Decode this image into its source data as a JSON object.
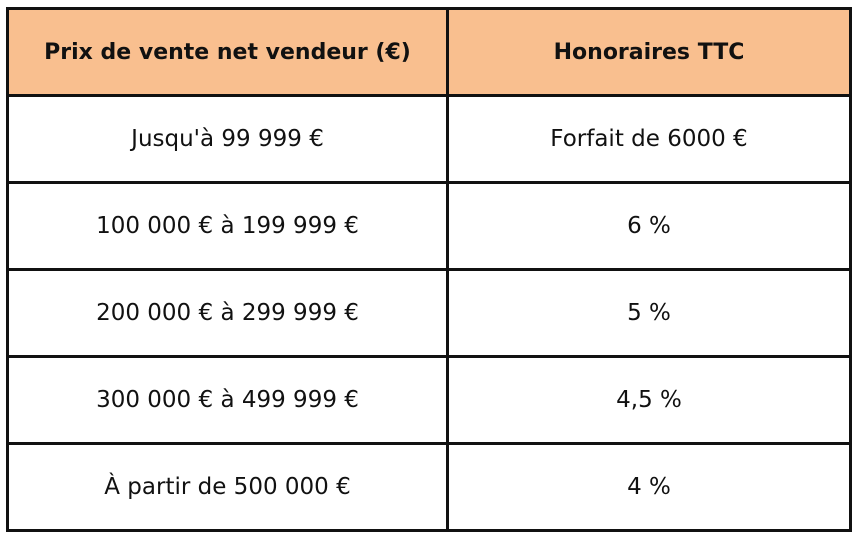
{
  "table": {
    "headers": {
      "price": "Prix de vente net vendeur (€)",
      "fee": "Honoraires TTC"
    },
    "rows": [
      {
        "price": "Jusqu'à 99 999 €",
        "fee": "Forfait de 6000 €"
      },
      {
        "price": "100 000 € à 199 999 €",
        "fee": "6 %"
      },
      {
        "price": "200 000 € à 299 999 €",
        "fee": "5 %"
      },
      {
        "price": "300 000 € à 499 999 €",
        "fee": "4,5 %"
      },
      {
        "price": "À partir de 500 000 €",
        "fee": "4 %"
      }
    ]
  },
  "colors": {
    "header_background": "#f9bf8f",
    "border": "#111111",
    "text": "#111111"
  }
}
